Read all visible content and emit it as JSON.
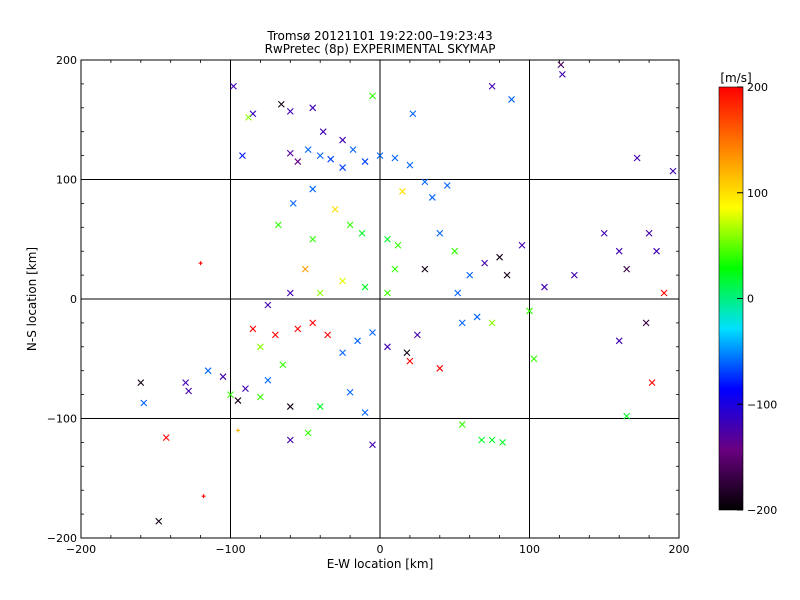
{
  "chart_data": {
    "type": "scatter",
    "title": "Tromsø 20121101 19:22:00–19:23:43",
    "subtitle": "RwPretec (8p) EXPERIMENTAL SKYMAP",
    "xlabel": "E-W location [km]",
    "ylabel": "N-S location [km]",
    "xlim": [
      -200,
      200
    ],
    "ylim": [
      -200,
      200
    ],
    "xticks": [
      -200,
      -100,
      0,
      100,
      200
    ],
    "yticks": [
      -200,
      -100,
      0,
      100,
      200
    ],
    "grid": true,
    "colorbar": {
      "label": "[m/s]",
      "range": [
        -200,
        200
      ],
      "ticks": [
        200,
        100,
        0,
        -100,
        -200
      ],
      "colormap": [
        "#000000",
        "#6a0080",
        "#0000ff",
        "#00e0ff",
        "#00ff00",
        "#ffff00",
        "#ff8000",
        "#ff0000"
      ]
    },
    "points": [
      {
        "x": -98,
        "y": 178,
        "v": -120,
        "m": "x"
      },
      {
        "x": -85,
        "y": 155,
        "v": -110,
        "m": "x"
      },
      {
        "x": -88,
        "y": 152,
        "v": 60,
        "m": "x"
      },
      {
        "x": -66,
        "y": 163,
        "v": -190,
        "m": "x"
      },
      {
        "x": -60,
        "y": 157,
        "v": -120,
        "m": "x"
      },
      {
        "x": -45,
        "y": 160,
        "v": -120,
        "m": "x"
      },
      {
        "x": -38,
        "y": 140,
        "v": -120,
        "m": "x"
      },
      {
        "x": -25,
        "y": 133,
        "v": -120,
        "m": "x"
      },
      {
        "x": -92,
        "y": 120,
        "v": -80,
        "m": "x"
      },
      {
        "x": -60,
        "y": 122,
        "v": -130,
        "m": "x"
      },
      {
        "x": -55,
        "y": 115,
        "v": -140,
        "m": "x"
      },
      {
        "x": -48,
        "y": 125,
        "v": -60,
        "m": "x"
      },
      {
        "x": -40,
        "y": 120,
        "v": -60,
        "m": "x"
      },
      {
        "x": -33,
        "y": 117,
        "v": -70,
        "m": "x"
      },
      {
        "x": -25,
        "y": 110,
        "v": -70,
        "m": "x"
      },
      {
        "x": -18,
        "y": 125,
        "v": -60,
        "m": "x"
      },
      {
        "x": -10,
        "y": 115,
        "v": -70,
        "m": "x"
      },
      {
        "x": 0,
        "y": 120,
        "v": -60,
        "m": "x"
      },
      {
        "x": 10,
        "y": 118,
        "v": -60,
        "m": "x"
      },
      {
        "x": 20,
        "y": 112,
        "v": -60,
        "m": "x"
      },
      {
        "x": -5,
        "y": 170,
        "v": 40,
        "m": "x"
      },
      {
        "x": 22,
        "y": 155,
        "v": -60,
        "m": "x"
      },
      {
        "x": 75,
        "y": 178,
        "v": -120,
        "m": "x"
      },
      {
        "x": 88,
        "y": 167,
        "v": -60,
        "m": "x"
      },
      {
        "x": 121,
        "y": 196,
        "v": -160,
        "m": "x"
      },
      {
        "x": 122,
        "y": 188,
        "v": -120,
        "m": "x"
      },
      {
        "x": 172,
        "y": 118,
        "v": -120,
        "m": "x"
      },
      {
        "x": 196,
        "y": 107,
        "v": -120,
        "m": "x"
      },
      {
        "x": 15,
        "y": 90,
        "v": 100,
        "m": "x"
      },
      {
        "x": 30,
        "y": 98,
        "v": -60,
        "m": "x"
      },
      {
        "x": 45,
        "y": 95,
        "v": -60,
        "m": "x"
      },
      {
        "x": 35,
        "y": 85,
        "v": -60,
        "m": "x"
      },
      {
        "x": -45,
        "y": 92,
        "v": -60,
        "m": "x"
      },
      {
        "x": -58,
        "y": 80,
        "v": -60,
        "m": "x"
      },
      {
        "x": -68,
        "y": 62,
        "v": 40,
        "m": "x"
      },
      {
        "x": -45,
        "y": 50,
        "v": 40,
        "m": "x"
      },
      {
        "x": -30,
        "y": 75,
        "v": 100,
        "m": "x"
      },
      {
        "x": -20,
        "y": 62,
        "v": 40,
        "m": "x"
      },
      {
        "x": -12,
        "y": 55,
        "v": 20,
        "m": "x"
      },
      {
        "x": 5,
        "y": 50,
        "v": 20,
        "m": "x"
      },
      {
        "x": 12,
        "y": 45,
        "v": 40,
        "m": "x"
      },
      {
        "x": 40,
        "y": 55,
        "v": -60,
        "m": "x"
      },
      {
        "x": 50,
        "y": 40,
        "v": 40,
        "m": "x"
      },
      {
        "x": 70,
        "y": 30,
        "v": -120,
        "m": "x"
      },
      {
        "x": 80,
        "y": 35,
        "v": -190,
        "m": "x"
      },
      {
        "x": 95,
        "y": 45,
        "v": -120,
        "m": "x"
      },
      {
        "x": 85,
        "y": 20,
        "v": -190,
        "m": "x"
      },
      {
        "x": 150,
        "y": 55,
        "v": -120,
        "m": "x"
      },
      {
        "x": 160,
        "y": 40,
        "v": -120,
        "m": "x"
      },
      {
        "x": 180,
        "y": 55,
        "v": -120,
        "m": "x"
      },
      {
        "x": 185,
        "y": 40,
        "v": -120,
        "m": "x"
      },
      {
        "x": 190,
        "y": 5,
        "v": 200,
        "m": "x"
      },
      {
        "x": 165,
        "y": 25,
        "v": -170,
        "m": "x"
      },
      {
        "x": 178,
        "y": -20,
        "v": -170,
        "m": "x"
      },
      {
        "x": 182,
        "y": -70,
        "v": 200,
        "m": "x"
      },
      {
        "x": 160,
        "y": -35,
        "v": -120,
        "m": "x"
      },
      {
        "x": 110,
        "y": 10,
        "v": -120,
        "m": "x"
      },
      {
        "x": 130,
        "y": 20,
        "v": -120,
        "m": "x"
      },
      {
        "x": 100,
        "y": -10,
        "v": 40,
        "m": "x"
      },
      {
        "x": 103,
        "y": -50,
        "v": 40,
        "m": "x"
      },
      {
        "x": 55,
        "y": -20,
        "v": -60,
        "m": "x"
      },
      {
        "x": 65,
        "y": -15,
        "v": -60,
        "m": "x"
      },
      {
        "x": 75,
        "y": -20,
        "v": 60,
        "m": "x"
      },
      {
        "x": 52,
        "y": 5,
        "v": -60,
        "m": "x"
      },
      {
        "x": 60,
        "y": 20,
        "v": -60,
        "m": "x"
      },
      {
        "x": 30,
        "y": 25,
        "v": -190,
        "m": "x"
      },
      {
        "x": 25,
        "y": -30,
        "v": -120,
        "m": "x"
      },
      {
        "x": 18,
        "y": -45,
        "v": -190,
        "m": "x"
      },
      {
        "x": 5,
        "y": -40,
        "v": -120,
        "m": "x"
      },
      {
        "x": -5,
        "y": -28,
        "v": -60,
        "m": "x"
      },
      {
        "x": -15,
        "y": -35,
        "v": -60,
        "m": "x"
      },
      {
        "x": -25,
        "y": -45,
        "v": -60,
        "m": "x"
      },
      {
        "x": -35,
        "y": -30,
        "v": 200,
        "m": "x"
      },
      {
        "x": -45,
        "y": -20,
        "v": 200,
        "m": "x"
      },
      {
        "x": -55,
        "y": -25,
        "v": 200,
        "m": "x"
      },
      {
        "x": -70,
        "y": -30,
        "v": 200,
        "m": "x"
      },
      {
        "x": -85,
        "y": -25,
        "v": 200,
        "m": "x"
      },
      {
        "x": -80,
        "y": -40,
        "v": 60,
        "m": "x"
      },
      {
        "x": -65,
        "y": -55,
        "v": 40,
        "m": "x"
      },
      {
        "x": -75,
        "y": -68,
        "v": -60,
        "m": "x"
      },
      {
        "x": -90,
        "y": -75,
        "v": -120,
        "m": "x"
      },
      {
        "x": -80,
        "y": -82,
        "v": 40,
        "m": "x"
      },
      {
        "x": -95,
        "y": -85,
        "v": -190,
        "m": "x"
      },
      {
        "x": -100,
        "y": -80,
        "v": 40,
        "m": "x"
      },
      {
        "x": -130,
        "y": -70,
        "v": -120,
        "m": "x"
      },
      {
        "x": -128,
        "y": -77,
        "v": -120,
        "m": "x"
      },
      {
        "x": -160,
        "y": -70,
        "v": -190,
        "m": "x"
      },
      {
        "x": -158,
        "y": -87,
        "v": -60,
        "m": "x"
      },
      {
        "x": -143,
        "y": -116,
        "v": 200,
        "m": "x"
      },
      {
        "x": -148,
        "y": -186,
        "v": -190,
        "m": "x"
      },
      {
        "x": -115,
        "y": -60,
        "v": -60,
        "m": "x"
      },
      {
        "x": -105,
        "y": -65,
        "v": -120,
        "m": "x"
      },
      {
        "x": -60,
        "y": -90,
        "v": -190,
        "m": "x"
      },
      {
        "x": -40,
        "y": -90,
        "v": 20,
        "m": "x"
      },
      {
        "x": -20,
        "y": -78,
        "v": -60,
        "m": "x"
      },
      {
        "x": -10,
        "y": -95,
        "v": -60,
        "m": "x"
      },
      {
        "x": -5,
        "y": -122,
        "v": -120,
        "m": "x"
      },
      {
        "x": -60,
        "y": -118,
        "v": -120,
        "m": "x"
      },
      {
        "x": -48,
        "y": -112,
        "v": 40,
        "m": "x"
      },
      {
        "x": 55,
        "y": -105,
        "v": 40,
        "m": "x"
      },
      {
        "x": 68,
        "y": -118,
        "v": 20,
        "m": "x"
      },
      {
        "x": 75,
        "y": -118,
        "v": 20,
        "m": "x"
      },
      {
        "x": 82,
        "y": -120,
        "v": 20,
        "m": "x"
      },
      {
        "x": 40,
        "y": -58,
        "v": 200,
        "m": "x"
      },
      {
        "x": 20,
        "y": -52,
        "v": 200,
        "m": "x"
      },
      {
        "x": -10,
        "y": 10,
        "v": 20,
        "m": "x"
      },
      {
        "x": 5,
        "y": 5,
        "v": 40,
        "m": "x"
      },
      {
        "x": -25,
        "y": 15,
        "v": 80,
        "m": "x"
      },
      {
        "x": -40,
        "y": 5,
        "v": 60,
        "m": "x"
      },
      {
        "x": -50,
        "y": 25,
        "v": 130,
        "m": "x"
      },
      {
        "x": -60,
        "y": 5,
        "v": -120,
        "m": "x"
      },
      {
        "x": -75,
        "y": -5,
        "v": -120,
        "m": "x"
      },
      {
        "x": 10,
        "y": 25,
        "v": 40,
        "m": "x"
      },
      {
        "x": -120,
        "y": 30,
        "v": 200,
        "m": "+"
      },
      {
        "x": -118,
        "y": -165,
        "v": 200,
        "m": "+"
      },
      {
        "x": 165,
        "y": -98,
        "v": 20,
        "m": "x"
      },
      {
        "x": -95,
        "y": -110,
        "v": 120,
        "m": "+"
      }
    ]
  }
}
